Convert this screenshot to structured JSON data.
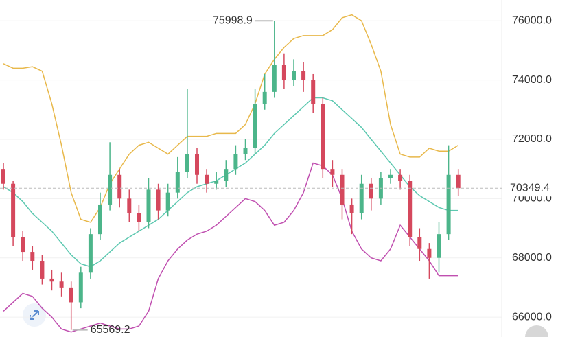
{
  "chart_data": {
    "type": "candlestick",
    "open": [
      71000,
      70500,
      68700,
      68200,
      67900,
      67300,
      67200,
      67000,
      66500,
      67500,
      68800,
      69800,
      70800,
      70000,
      69500,
      69200,
      70300,
      69600,
      70200,
      70900,
      71500,
      70800,
      70500,
      70600,
      71000,
      71500,
      71700,
      73200,
      73600,
      74500,
      74000,
      74300,
      74000,
      73200,
      71000,
      70800,
      69800,
      69500,
      70500,
      70000,
      70700,
      70800,
      70600,
      68700,
      68300,
      68000,
      68800,
      70800
    ],
    "high": [
      71200,
      70600,
      68900,
      68400,
      68100,
      67600,
      67500,
      67200,
      67700,
      69000,
      70200,
      71900,
      71000,
      70300,
      69800,
      70700,
      70500,
      70500,
      71400,
      73700,
      71700,
      71000,
      70900,
      71300,
      71800,
      72000,
      73700,
      74200,
      75998.9,
      74900,
      74700,
      74600,
      74200,
      73400,
      71300,
      71000,
      70000,
      70800,
      70700,
      70900,
      71000,
      71000,
      70800,
      69000,
      68500,
      69200,
      71800,
      71000
    ],
    "low": [
      70300,
      68400,
      67900,
      67600,
      67100,
      66900,
      66700,
      65569.2,
      66300,
      67300,
      68600,
      69600,
      69700,
      69200,
      68900,
      69000,
      69300,
      69400,
      70000,
      70700,
      70500,
      70200,
      70300,
      70400,
      70800,
      71300,
      71500,
      73000,
      73400,
      73700,
      73800,
      73600,
      72900,
      70700,
      70400,
      69300,
      68800,
      69300,
      69600,
      69800,
      70500,
      70300,
      68400,
      67900,
      67300,
      67500,
      68600,
      70100
    ],
    "close": [
      70500,
      68700,
      68200,
      67900,
      67300,
      67200,
      67000,
      66500,
      67500,
      68800,
      69800,
      70800,
      70000,
      69500,
      69200,
      70300,
      69600,
      70200,
      70900,
      71500,
      70800,
      70500,
      70600,
      71000,
      71500,
      71700,
      73200,
      73600,
      74500,
      74000,
      74300,
      74000,
      73200,
      71000,
      70800,
      69800,
      69500,
      70500,
      70000,
      70700,
      70800,
      70600,
      68700,
      68300,
      68000,
      68800,
      70800,
      70349.4
    ],
    "up_color": "#4cb58a",
    "down_color": "#d5485d",
    "series": [
      {
        "color": "#e8b84a",
        "values": [
          74550,
          74400,
          74400,
          74450,
          74300,
          73200,
          71800,
          70200,
          69300,
          69200,
          69700,
          70500,
          71000,
          71500,
          71800,
          71900,
          71700,
          71500,
          71800,
          72100,
          72100,
          72100,
          72200,
          72200,
          72200,
          72500,
          73200,
          74200,
          74700,
          75100,
          75400,
          75500,
          75500,
          75500,
          75700,
          76100,
          76200,
          76000,
          75200,
          74300,
          72500,
          71500,
          71400,
          71400,
          71700,
          71600,
          71600,
          71800
        ]
      },
      {
        "color": "#5cc8b0",
        "values": [
          70400,
          70200,
          69900,
          69500,
          69200,
          68900,
          68500,
          68100,
          67800,
          67700,
          67900,
          68200,
          68500,
          68700,
          68900,
          69100,
          69300,
          69600,
          69900,
          70200,
          70400,
          70500,
          70600,
          70800,
          71000,
          71200,
          71500,
          71800,
          72200,
          72500,
          72800,
          73100,
          73400,
          73400,
          73300,
          73000,
          72700,
          72400,
          72000,
          71600,
          71200,
          70800,
          70400,
          70100,
          69900,
          69700,
          69600,
          69600
        ]
      },
      {
        "color": "#c04fb0",
        "values": [
          66200,
          66500,
          66800,
          66700,
          66300,
          66000,
          65600,
          65500,
          65600,
          65700,
          65800,
          65700,
          65600,
          65600,
          65700,
          66200,
          67300,
          67900,
          68300,
          68600,
          68800,
          68900,
          69100,
          69400,
          69700,
          70000,
          69900,
          69600,
          69100,
          69200,
          69600,
          70200,
          71200,
          71100,
          70800,
          70000,
          68900,
          68300,
          68000,
          67900,
          68300,
          69100,
          68700,
          68300,
          67900,
          67400,
          67400,
          67400
        ]
      }
    ],
    "ylim": [
      65330,
      76700
    ],
    "yticks": [
      {
        "value": 66000,
        "label": "66000.0"
      },
      {
        "value": 68000,
        "label": "68000.0"
      },
      {
        "value": 70000,
        "label": "70000.0"
      },
      {
        "value": 72000,
        "label": "72000.0"
      },
      {
        "value": 74000,
        "label": "74000.0"
      },
      {
        "value": 76000,
        "label": "76000.0"
      }
    ],
    "grid": true
  }
}
